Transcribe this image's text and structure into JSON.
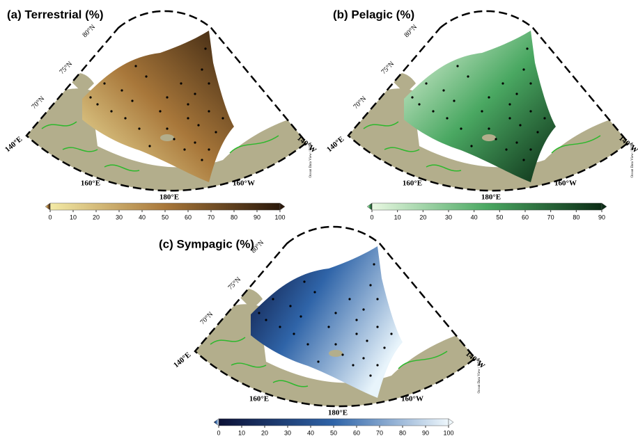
{
  "panels": [
    {
      "title": "(a) Terrestrial (%)",
      "colorbar": {
        "range": [
          0,
          100
        ],
        "ticks": [
          0,
          10,
          20,
          30,
          40,
          50,
          60,
          70,
          80,
          90,
          100
        ]
      }
    },
    {
      "title": "(b) Pelagic (%)",
      "colorbar": {
        "range": [
          0,
          90
        ],
        "ticks": [
          0,
          10,
          20,
          30,
          40,
          50,
          60,
          70,
          80,
          90
        ]
      }
    },
    {
      "title": "(c) Sympagic (%)",
      "colorbar": {
        "range": [
          0,
          100
        ],
        "ticks": [
          0,
          10,
          20,
          30,
          40,
          50,
          60,
          70,
          80,
          90,
          100
        ]
      }
    }
  ],
  "map_labels": {
    "lat": [
      "80°N",
      "75°N",
      "70°N"
    ],
    "lon": [
      "140°E",
      "160°E",
      "180°E",
      "160°W",
      "140°W"
    ],
    "credit": "Ocean Data View / DIVA"
  }
}
